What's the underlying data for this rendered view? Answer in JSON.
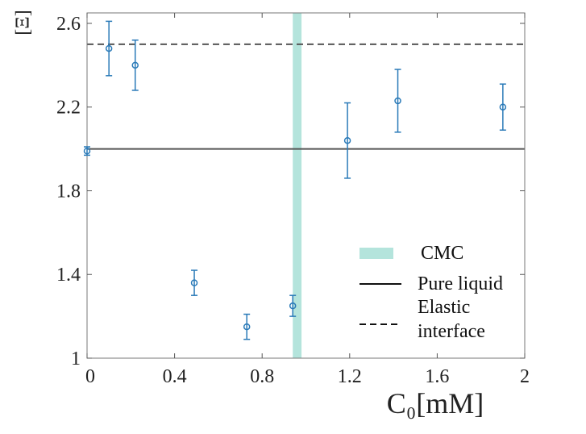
{
  "chart_data": {
    "type": "scatter",
    "x_label": "C₀[mM]",
    "y_label": "[Ξ]",
    "x": [
      0.0,
      0.1,
      0.22,
      0.49,
      0.73,
      0.94,
      1.19,
      1.42,
      1.9
    ],
    "values": [
      1.99,
      2.48,
      2.4,
      1.36,
      1.15,
      1.25,
      2.04,
      2.23,
      2.2
    ],
    "errors": [
      0.02,
      0.13,
      0.12,
      0.06,
      0.06,
      0.05,
      0.18,
      0.15,
      0.11
    ],
    "color": "#2a7ab8",
    "xlim": [
      0,
      2
    ],
    "ylim": [
      1,
      2.65
    ],
    "xticks": [
      0,
      0.4,
      0.8,
      1.2,
      1.6,
      2
    ],
    "yticks": [
      1,
      1.4,
      1.8,
      2.2,
      2.6
    ],
    "band": {
      "name": "CMC",
      "range": [
        0.94,
        0.98
      ],
      "color": "#b4e4dc"
    },
    "hlines": [
      {
        "name": "Pure liquid",
        "value": 2.0,
        "style": "solid",
        "color": "#555555"
      },
      {
        "name": "Elastic interface",
        "value": 2.5,
        "style": "dashed",
        "color": "#555555"
      }
    ],
    "legend": "lower right"
  }
}
